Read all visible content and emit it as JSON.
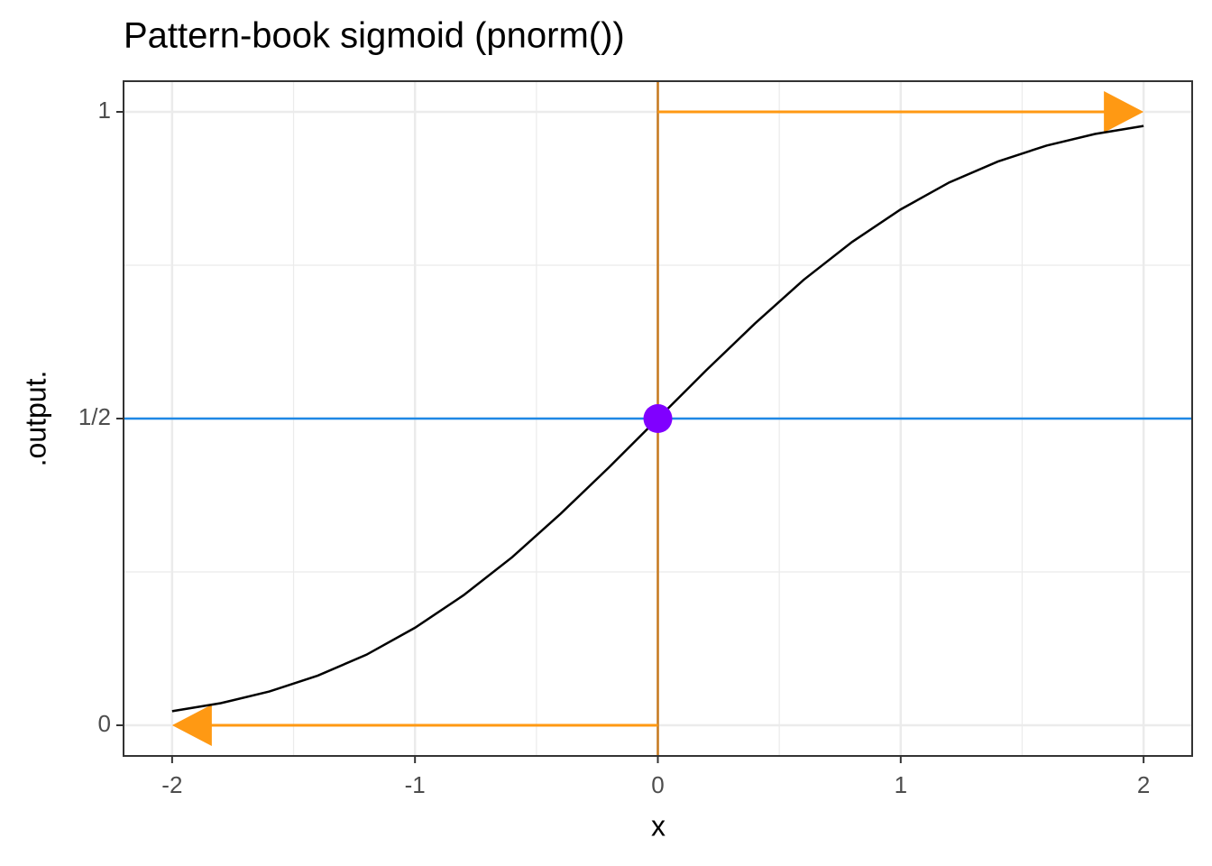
{
  "chart_data": {
    "type": "line",
    "title": "Pattern-book sigmoid (pnorm())",
    "x_label": "x",
    "y_label": ".output.",
    "xlim": [
      -2.2,
      2.2
    ],
    "ylim": [
      -0.05,
      1.05
    ],
    "xticks": [
      -2,
      -1,
      0,
      1,
      2
    ],
    "yticks": [
      0,
      {
        "value": 0.5,
        "label": "1/2"
      },
      1
    ],
    "xminor": [
      -1.5,
      -0.5,
      0.5,
      1.5
    ],
    "yminor": [
      0.25,
      0.75
    ],
    "grid": true,
    "series": [
      {
        "color": "#000000",
        "x": [
          -2,
          -1.8,
          -1.6,
          -1.4,
          -1.2,
          -1,
          -0.8,
          -0.6,
          -0.4,
          -0.2,
          0,
          0.2,
          0.4,
          0.6,
          0.8,
          1,
          1.2,
          1.4,
          1.6,
          1.8,
          2
        ],
        "values": [
          0.023,
          0.036,
          0.055,
          0.081,
          0.115,
          0.159,
          0.212,
          0.274,
          0.345,
          0.421,
          0.5,
          0.579,
          0.655,
          0.726,
          0.788,
          0.841,
          0.885,
          0.919,
          0.945,
          0.964,
          0.977
        ]
      }
    ],
    "hline": {
      "y": 0.5,
      "color": "#1e88e5"
    },
    "vline": {
      "x": 0,
      "color": "#c77a1e"
    },
    "point": {
      "x": 0,
      "y": 0.5,
      "color": "#8000ff"
    },
    "arrows": [
      {
        "x": [
          0,
          2
        ],
        "y": [
          1,
          1
        ],
        "color": "#ff9913"
      },
      {
        "x": [
          0,
          -2
        ],
        "y": [
          0,
          0
        ],
        "color": "#ff9913"
      }
    ]
  }
}
